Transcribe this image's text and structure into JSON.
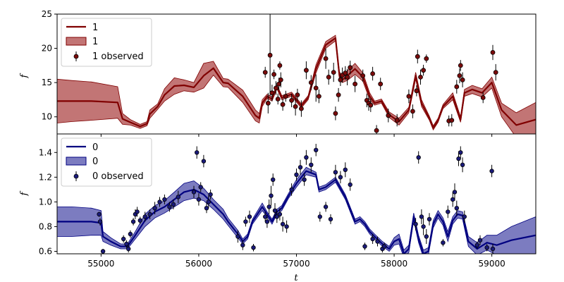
{
  "chart_data": [
    {
      "type": "line",
      "panel": "top",
      "ylabel": "f",
      "xlabel": "",
      "xlim": [
        54550,
        59450
      ],
      "ylim": [
        7.5,
        25
      ],
      "yticks": [
        10,
        15,
        20,
        25
      ],
      "xticks": [
        55000,
        56000,
        57000,
        58000,
        59000
      ],
      "xtick_labels_visible": false,
      "grid": false,
      "legend_position": "top-left",
      "colors": {
        "line": "#800000",
        "band": "#b35353",
        "points": "#7a0a0a",
        "point_edge": "#000000"
      },
      "legend": [
        {
          "kind": "line",
          "label": "1"
        },
        {
          "kind": "band",
          "label": "1"
        },
        {
          "kind": "points",
          "label": "1 observed"
        }
      ],
      "model_x": [
        54550,
        54700,
        54900,
        55170,
        55220,
        55300,
        55400,
        55470,
        55500,
        55580,
        55650,
        55750,
        55850,
        55950,
        56050,
        56150,
        56250,
        56300,
        56450,
        56580,
        56620,
        56650,
        56700,
        56750,
        56800,
        56850,
        56950,
        57050,
        57120,
        57200,
        57300,
        57400,
        57440,
        57470,
        57520,
        57600,
        57680,
        57750,
        57800,
        57870,
        57950,
        58050,
        58150,
        58220,
        58280,
        58360,
        58400,
        58450,
        58500,
        58600,
        58680,
        58720,
        58800,
        58900,
        59000,
        59100,
        59250,
        59450
      ],
      "model_y": [
        12.3,
        12.3,
        12.3,
        12.1,
        9.7,
        9.2,
        8.6,
        9.0,
        10.4,
        11.5,
        13.2,
        14.5,
        14.6,
        14.3,
        16.0,
        17.1,
        15.0,
        14.9,
        13.0,
        10.2,
        9.8,
        12.0,
        13.0,
        12.6,
        14.4,
        12.8,
        13.3,
        11.6,
        12.8,
        17.0,
        20.5,
        21.5,
        16.0,
        15.4,
        16.0,
        17.0,
        15.8,
        13.0,
        12.0,
        12.3,
        10.3,
        9.3,
        11.0,
        16.0,
        12.0,
        9.8,
        8.4,
        9.5,
        11.5,
        13.0,
        9.6,
        13.5,
        14.0,
        13.5,
        15.0,
        11.0,
        8.8,
        9.6
      ],
      "band_halfwidth": [
        3.2,
        3.0,
        2.8,
        2.3,
        0.8,
        0.4,
        0.3,
        0.3,
        0.6,
        0.4,
        0.9,
        1.2,
        0.8,
        0.7,
        1.8,
        1.0,
        0.6,
        0.6,
        0.9,
        0.8,
        0.7,
        0.5,
        0.3,
        0.3,
        0.3,
        0.3,
        0.3,
        0.3,
        0.3,
        0.6,
        0.5,
        0.4,
        0.6,
        0.4,
        0.7,
        0.8,
        0.6,
        0.5,
        0.3,
        0.3,
        0.4,
        0.5,
        0.4,
        0.5,
        0.5,
        0.3,
        0.3,
        0.3,
        0.3,
        0.5,
        0.4,
        0.5,
        0.6,
        0.6,
        0.8,
        1.0,
        1.8,
        2.5
      ],
      "observed": [
        [
          56680,
          16.5,
          0.8
        ],
        [
          56710,
          12.0,
          1.5
        ],
        [
          56730,
          19.0,
          6.0
        ],
        [
          56750,
          13.5,
          1.2
        ],
        [
          56770,
          16.2,
          0.7
        ],
        [
          56790,
          14.2,
          1.0
        ],
        [
          56810,
          12.6,
          0.8
        ],
        [
          56820,
          14.8,
          0.9
        ],
        [
          56830,
          17.5,
          0.6
        ],
        [
          56840,
          15.4,
          1.1
        ],
        [
          56860,
          11.8,
          0.9
        ],
        [
          56890,
          13.0,
          0.8
        ],
        [
          56950,
          12.4,
          1.0
        ],
        [
          56990,
          11.5,
          1.3
        ],
        [
          57010,
          13.2,
          0.9
        ],
        [
          57050,
          11.2,
          1.2
        ],
        [
          57100,
          16.8,
          1.3
        ],
        [
          57150,
          15.0,
          1.1
        ],
        [
          57200,
          14.2,
          2.0
        ],
        [
          57230,
          13.0,
          1.0
        ],
        [
          57300,
          18.5,
          1.5
        ],
        [
          57330,
          15.8,
          1.1
        ],
        [
          57380,
          16.5,
          1.4
        ],
        [
          57400,
          10.5,
          1.0
        ],
        [
          57430,
          13.2,
          1.0
        ],
        [
          57450,
          15.4,
          0.9
        ],
        [
          57470,
          16.1,
          1.1
        ],
        [
          57500,
          16.4,
          1.0
        ],
        [
          57520,
          15.8,
          1.2
        ],
        [
          57550,
          17.2,
          1.0
        ],
        [
          57600,
          14.8,
          1.2
        ],
        [
          57680,
          16.0,
          0.9
        ],
        [
          57720,
          12.4,
          1.0
        ],
        [
          57740,
          12.0,
          1.1
        ],
        [
          57760,
          11.7,
          1.0
        ],
        [
          57780,
          16.3,
          1.0
        ],
        [
          57820,
          8.0,
          0.8
        ],
        [
          57860,
          14.8,
          0.9
        ],
        [
          57940,
          10.2,
          1.0
        ],
        [
          58030,
          9.5,
          0.9
        ],
        [
          58150,
          13.0,
          1.0
        ],
        [
          58190,
          10.8,
          1.0
        ],
        [
          58230,
          13.8,
          0.8
        ],
        [
          58240,
          18.8,
          1.0
        ],
        [
          58270,
          15.8,
          1.1
        ],
        [
          58300,
          16.8,
          0.8
        ],
        [
          58330,
          18.5,
          0.6
        ],
        [
          58560,
          9.4,
          0.8
        ],
        [
          58590,
          9.5,
          0.9
        ],
        [
          58640,
          14.4,
          1.0
        ],
        [
          58670,
          16.0,
          1.1
        ],
        [
          58680,
          17.5,
          0.8
        ],
        [
          58700,
          15.4,
          1.1
        ],
        [
          58910,
          12.8,
          0.8
        ],
        [
          59010,
          19.4,
          1.1
        ],
        [
          59040,
          16.5,
          1.2
        ]
      ]
    },
    {
      "type": "line",
      "panel": "bottom",
      "ylabel": "f",
      "xlabel": "t",
      "xlim": [
        54550,
        59450
      ],
      "ylim": [
        0.58,
        1.55
      ],
      "yticks": [
        0.6,
        0.8,
        1.0,
        1.2,
        1.4
      ],
      "ytick_labels": [
        "0.6",
        "0.8",
        "1.0",
        "1.2",
        "1.4"
      ],
      "xticks": [
        55000,
        56000,
        57000,
        58000,
        59000
      ],
      "xtick_labels": [
        "55000",
        "56000",
        "57000",
        "58000",
        "59000"
      ],
      "grid": false,
      "legend_position": "top-left",
      "colors": {
        "line": "#000080",
        "band": "#5b5bb0",
        "points": "#1a1a7a",
        "point_edge": "#000000"
      },
      "legend": [
        {
          "kind": "line",
          "label": "0"
        },
        {
          "kind": "band",
          "label": "0"
        },
        {
          "kind": "points",
          "label": "0 observed"
        }
      ],
      "model_x": [
        54550,
        54700,
        54900,
        55000,
        55020,
        55100,
        55200,
        55270,
        55350,
        55450,
        55550,
        55650,
        55750,
        55850,
        55950,
        56050,
        56150,
        56250,
        56300,
        56400,
        56450,
        56500,
        56550,
        56650,
        56700,
        56750,
        56800,
        56850,
        56920,
        57000,
        57100,
        57200,
        57230,
        57300,
        57400,
        57500,
        57600,
        57650,
        57700,
        57750,
        57800,
        57880,
        57950,
        58000,
        58050,
        58100,
        58150,
        58200,
        58250,
        58300,
        58350,
        58400,
        58450,
        58500,
        58550,
        58600,
        58650,
        58700,
        58760,
        58850,
        58950,
        59050,
        59200,
        59450
      ],
      "model_y": [
        0.84,
        0.84,
        0.84,
        0.83,
        0.72,
        0.68,
        0.64,
        0.64,
        0.73,
        0.85,
        0.92,
        0.96,
        1.02,
        1.08,
        1.1,
        1.06,
        0.98,
        0.9,
        0.84,
        0.74,
        0.68,
        0.72,
        0.84,
        0.96,
        0.9,
        0.84,
        0.92,
        0.95,
        1.05,
        1.15,
        1.25,
        1.22,
        1.1,
        1.12,
        1.18,
        1.04,
        0.84,
        0.86,
        0.82,
        0.76,
        0.72,
        0.66,
        0.62,
        0.68,
        0.7,
        0.58,
        0.62,
        0.88,
        0.7,
        0.58,
        0.6,
        0.82,
        0.9,
        0.84,
        0.72,
        0.85,
        0.9,
        0.89,
        0.68,
        0.62,
        0.67,
        0.65,
        0.69,
        0.73
      ],
      "band_halfwidth": [
        0.12,
        0.12,
        0.11,
        0.1,
        0.04,
        0.03,
        0.02,
        0.02,
        0.03,
        0.05,
        0.05,
        0.05,
        0.06,
        0.07,
        0.07,
        0.05,
        0.04,
        0.04,
        0.03,
        0.03,
        0.02,
        0.02,
        0.02,
        0.03,
        0.02,
        0.02,
        0.02,
        0.02,
        0.02,
        0.03,
        0.03,
        0.02,
        0.02,
        0.02,
        0.02,
        0.02,
        0.02,
        0.02,
        0.02,
        0.02,
        0.02,
        0.02,
        0.02,
        0.03,
        0.04,
        0.03,
        0.03,
        0.03,
        0.03,
        0.03,
        0.03,
        0.03,
        0.03,
        0.03,
        0.04,
        0.03,
        0.03,
        0.03,
        0.04,
        0.05,
        0.06,
        0.08,
        0.11,
        0.15
      ],
      "observed": [
        [
          54980,
          0.9,
          0.02
        ],
        [
          54990,
          0.84,
          0.03
        ],
        [
          55020,
          0.6,
          0.02
        ],
        [
          55230,
          0.7,
          0.03
        ],
        [
          55260,
          0.66,
          0.03
        ],
        [
          55280,
          0.62,
          0.03
        ],
        [
          55300,
          0.74,
          0.03
        ],
        [
          55330,
          0.84,
          0.03
        ],
        [
          55350,
          0.9,
          0.04
        ],
        [
          55370,
          0.92,
          0.04
        ],
        [
          55400,
          0.85,
          0.03
        ],
        [
          55450,
          0.88,
          0.04
        ],
        [
          55500,
          0.9,
          0.04
        ],
        [
          55550,
          0.95,
          0.05
        ],
        [
          55600,
          1.0,
          0.04
        ],
        [
          55650,
          1.02,
          0.04
        ],
        [
          55700,
          0.96,
          0.04
        ],
        [
          55740,
          0.98,
          0.04
        ],
        [
          55790,
          1.04,
          0.05
        ],
        [
          55950,
          1.08,
          0.05
        ],
        [
          55980,
          1.4,
          0.05
        ],
        [
          56000,
          1.02,
          0.05
        ],
        [
          56020,
          1.12,
          0.04
        ],
        [
          56050,
          1.33,
          0.05
        ],
        [
          56080,
          0.95,
          0.04
        ],
        [
          56100,
          1.0,
          0.05
        ],
        [
          56120,
          1.06,
          0.04
        ],
        [
          56400,
          0.72,
          0.05
        ],
        [
          56450,
          0.65,
          0.04
        ],
        [
          56480,
          0.84,
          0.04
        ],
        [
          56520,
          0.88,
          0.05
        ],
        [
          56560,
          0.63,
          0.03
        ],
        [
          56680,
          0.88,
          0.04
        ],
        [
          56700,
          0.84,
          0.05
        ],
        [
          56720,
          0.96,
          0.06
        ],
        [
          56740,
          1.05,
          0.08
        ],
        [
          56760,
          1.18,
          0.05
        ],
        [
          56780,
          0.93,
          0.06
        ],
        [
          56800,
          0.88,
          0.05
        ],
        [
          56830,
          0.9,
          0.05
        ],
        [
          56860,
          0.82,
          0.06
        ],
        [
          56900,
          0.8,
          0.05
        ],
        [
          56950,
          1.1,
          0.05
        ],
        [
          57000,
          1.22,
          0.05
        ],
        [
          57040,
          1.28,
          0.06
        ],
        [
          57080,
          1.18,
          0.05
        ],
        [
          57100,
          1.36,
          0.06
        ],
        [
          57150,
          1.3,
          0.06
        ],
        [
          57200,
          1.42,
          0.05
        ],
        [
          57240,
          0.88,
          0.04
        ],
        [
          57300,
          0.96,
          0.04
        ],
        [
          57350,
          0.86,
          0.04
        ],
        [
          57400,
          1.24,
          0.06
        ],
        [
          57450,
          1.2,
          0.05
        ],
        [
          57500,
          1.26,
          0.06
        ],
        [
          57550,
          1.14,
          0.05
        ],
        [
          57700,
          0.64,
          0.03
        ],
        [
          57780,
          0.7,
          0.04
        ],
        [
          57830,
          0.68,
          0.04
        ],
        [
          57880,
          0.62,
          0.03
        ],
        [
          57900,
          0.64,
          0.03
        ],
        [
          58220,
          0.82,
          0.05
        ],
        [
          58250,
          1.36,
          0.05
        ],
        [
          58280,
          0.88,
          0.06
        ],
        [
          58300,
          0.8,
          0.07
        ],
        [
          58330,
          0.72,
          0.06
        ],
        [
          58360,
          0.86,
          0.05
        ],
        [
          58500,
          0.67,
          0.03
        ],
        [
          58550,
          0.92,
          0.05
        ],
        [
          58600,
          1.02,
          0.06
        ],
        [
          58620,
          1.08,
          0.07
        ],
        [
          58640,
          0.95,
          0.06
        ],
        [
          58660,
          1.35,
          0.06
        ],
        [
          58680,
          1.4,
          0.05
        ],
        [
          58700,
          1.3,
          0.06
        ],
        [
          58720,
          0.88,
          0.05
        ],
        [
          58850,
          0.65,
          0.03
        ],
        [
          58880,
          0.69,
          0.04
        ],
        [
          58950,
          0.63,
          0.03
        ],
        [
          59000,
          1.25,
          0.05
        ],
        [
          59010,
          0.62,
          0.04
        ]
      ]
    }
  ]
}
